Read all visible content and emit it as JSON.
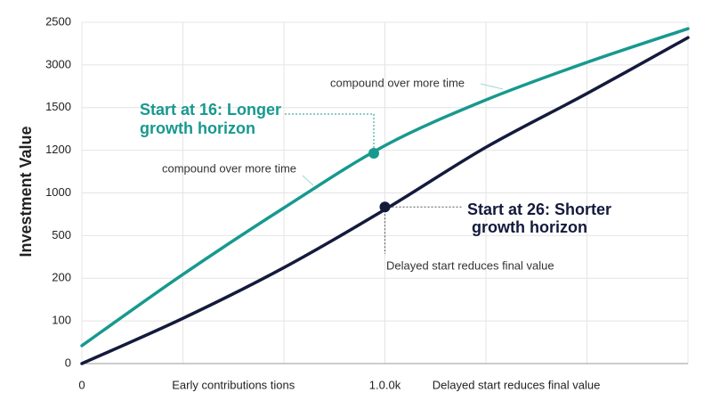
{
  "chart_data": {
    "type": "line",
    "ylabel": "Investment Value",
    "x": [
      0,
      1,
      2,
      3,
      4,
      5,
      6
    ],
    "xlim": [
      0,
      6
    ],
    "ylim": [
      0,
      8
    ],
    "xgrid": [
      0,
      1,
      2,
      3,
      4,
      5,
      6
    ],
    "xticks": [
      {
        "value": 0,
        "label": "0"
      },
      {
        "value": 1.5,
        "label": "Early contributions tions"
      },
      {
        "value": 3,
        "label": "1.0.0k"
      },
      {
        "value": 4.3,
        "label": "Delayed start reduces final value"
      }
    ],
    "yticks": [
      {
        "value": 0,
        "label": "0"
      },
      {
        "value": 1,
        "label": "100"
      },
      {
        "value": 2,
        "label": "200"
      },
      {
        "value": 3,
        "label": "500"
      },
      {
        "value": 4,
        "label": "1000"
      },
      {
        "value": 5,
        "label": "1200"
      },
      {
        "value": 6,
        "label": "1500"
      },
      {
        "value": 7,
        "label": "3000"
      },
      {
        "value": 8,
        "label": "2500"
      }
    ],
    "grid": true,
    "series": [
      {
        "color": "#17998f",
        "values": [
          0.42,
          2.09,
          3.65,
          5.11,
          6.18,
          7.06,
          7.85
        ],
        "marker": {
          "x": 2.89,
          "y": 4.93
        }
      },
      {
        "color": "#141a3c",
        "values": [
          0,
          1.06,
          2.25,
          3.61,
          5.07,
          6.33,
          7.64
        ],
        "marker": {
          "x": 3.0,
          "y": 3.67
        }
      }
    ],
    "annotations": [
      {
        "text": [
          "Start at 16: Longer",
          "growth horizon"
        ],
        "color": "#17998f",
        "bold": true
      },
      {
        "text": [
          "Start at 26: Shorter",
          "growth horizon"
        ],
        "color": "#141a3c",
        "bold": true
      },
      {
        "text": [
          "Delayed start reduces final value"
        ],
        "color": "#333333",
        "bold": false
      },
      {
        "text": [
          "compound over more time"
        ],
        "color": "#333333",
        "bold": false
      },
      {
        "text": [
          "compound over more time"
        ],
        "color": "#333333",
        "bold": false
      }
    ]
  }
}
